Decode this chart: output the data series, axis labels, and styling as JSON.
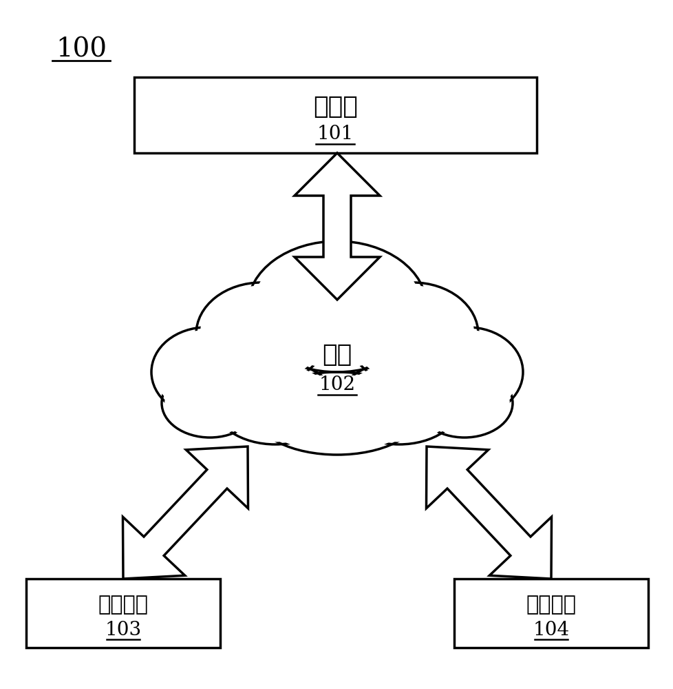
{
  "bg_color": "#ffffff",
  "label_100": "100",
  "server_label": "服务器",
  "server_num": "101",
  "network_label": "网络",
  "network_num": "102",
  "terminal_left_label": "托运终端",
  "terminal_left_num": "103",
  "terminal_right_label": "承运终端",
  "terminal_right_num": "104",
  "arrow_color": "#000000",
  "line_width": 2.5,
  "font_size_large": 26,
  "font_size_num": 20
}
